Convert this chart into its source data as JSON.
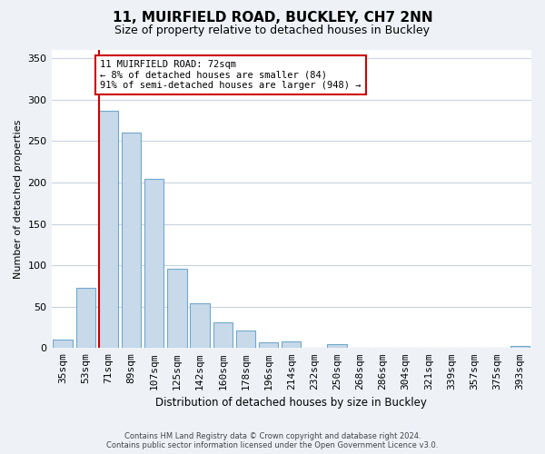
{
  "title": "11, MUIRFIELD ROAD, BUCKLEY, CH7 2NN",
  "subtitle": "Size of property relative to detached houses in Buckley",
  "xlabel": "Distribution of detached houses by size in Buckley",
  "ylabel": "Number of detached properties",
  "bin_labels": [
    "35sqm",
    "53sqm",
    "71sqm",
    "89sqm",
    "107sqm",
    "125sqm",
    "142sqm",
    "160sqm",
    "178sqm",
    "196sqm",
    "214sqm",
    "232sqm",
    "250sqm",
    "268sqm",
    "286sqm",
    "304sqm",
    "321sqm",
    "339sqm",
    "357sqm",
    "375sqm",
    "393sqm"
  ],
  "bar_heights": [
    10,
    73,
    287,
    260,
    204,
    96,
    54,
    31,
    21,
    7,
    8,
    0,
    5,
    0,
    0,
    0,
    0,
    0,
    0,
    0,
    2
  ],
  "bar_face_color": "#c8d9ea",
  "bar_edge_color": "#6fa8cc",
  "property_line_index": 2,
  "property_line_color": "#cc0000",
  "annotation_line1": "11 MUIRFIELD ROAD: 72sqm",
  "annotation_line2": "← 8% of detached houses are smaller (84)",
  "annotation_line3": "91% of semi-detached houses are larger (948) →",
  "annotation_box_color": "#ffffff",
  "annotation_border_color": "#cc0000",
  "ylim": [
    0,
    360
  ],
  "yticks": [
    0,
    50,
    100,
    150,
    200,
    250,
    300,
    350
  ],
  "footer_line1": "Contains HM Land Registry data © Crown copyright and database right 2024.",
  "footer_line2": "Contains public sector information licensed under the Open Government Licence v3.0.",
  "bg_color": "#eef2f7",
  "plot_bg_color": "#ffffff",
  "grid_color": "#c8d4e0"
}
